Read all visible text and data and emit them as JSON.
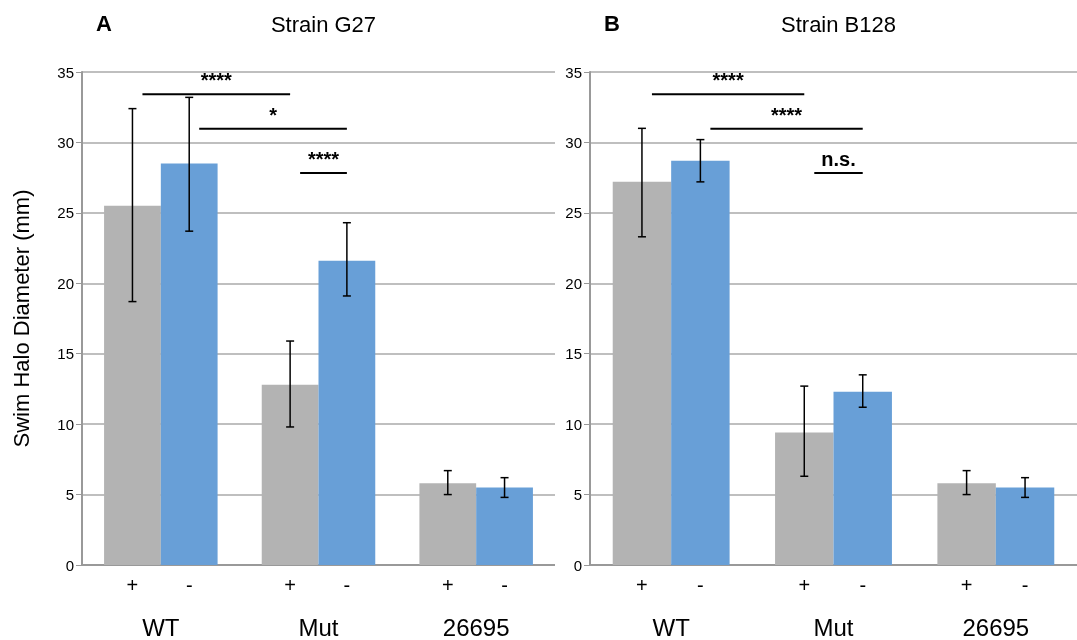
{
  "chart_data": [
    {
      "type": "bar",
      "title": "Strain G27",
      "ylabel": "Swim Halo Diameter (mm)",
      "categories": [
        "WT",
        "Mut",
        "26695"
      ],
      "ylim": [
        0,
        35
      ],
      "yticks": [
        0,
        5,
        10,
        15,
        20,
        25,
        30,
        35
      ],
      "grid": "y",
      "legend": false,
      "annotations": [
        "A",
        "****",
        "*",
        "****"
      ],
      "series": [
        {
          "name": "+",
          "color": "#b3b3b3",
          "values": [
            25.5,
            12.8,
            5.8
          ],
          "errors": [
            [
              18.7,
              32.4
            ],
            [
              9.8,
              15.9
            ],
            [
              5.0,
              6.7
            ]
          ]
        },
        {
          "name": "-",
          "color": "#689fd7",
          "values": [
            28.5,
            21.6,
            5.5
          ],
          "errors": [
            [
              23.7,
              33.2
            ],
            [
              19.1,
              24.3
            ],
            [
              4.8,
              6.2
            ]
          ]
        }
      ]
    },
    {
      "type": "bar",
      "title": "Strain B128",
      "categories": [
        "WT",
        "Mut",
        "26695"
      ],
      "ylim": [
        0,
        35
      ],
      "yticks": [
        0,
        5,
        10,
        15,
        20,
        25,
        30,
        35
      ],
      "grid": "y",
      "legend": false,
      "annotations": [
        "B",
        "****",
        "****",
        "n.s."
      ],
      "series": [
        {
          "name": "+",
          "color": "#b3b3b3",
          "values": [
            27.2,
            9.4,
            5.8
          ],
          "errors": [
            [
              23.3,
              31.0
            ],
            [
              6.3,
              12.7
            ],
            [
              5.0,
              6.7
            ]
          ]
        },
        {
          "name": "-",
          "color": "#689fd7",
          "values": [
            28.7,
            12.3,
            5.5
          ],
          "errors": [
            [
              27.2,
              30.2
            ],
            [
              11.2,
              13.5
            ],
            [
              4.8,
              6.2
            ]
          ]
        }
      ]
    }
  ]
}
